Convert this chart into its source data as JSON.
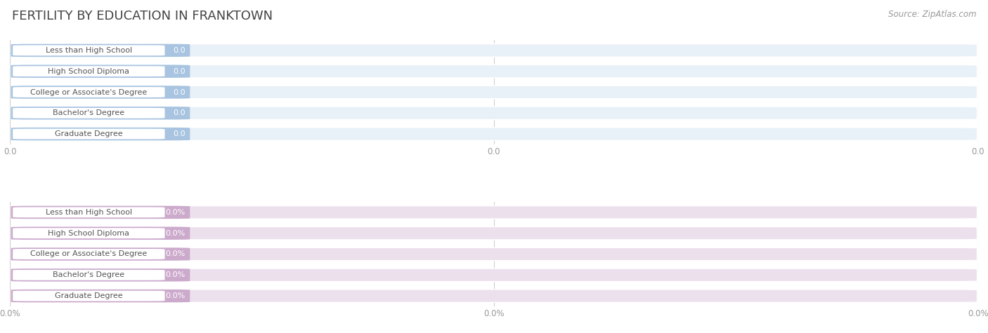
{
  "title": "FERTILITY BY EDUCATION IN FRANKTOWN",
  "source_text": "Source: ZipAtlas.com",
  "categories": [
    "Less than High School",
    "High School Diploma",
    "College or Associate's Degree",
    "Bachelor's Degree",
    "Graduate Degree"
  ],
  "top_values": [
    0.0,
    0.0,
    0.0,
    0.0,
    0.0
  ],
  "bottom_values": [
    0.0,
    0.0,
    0.0,
    0.0,
    0.0
  ],
  "top_bar_color": "#a8c4e0",
  "top_bar_bg": "#e8f0f8",
  "bottom_bar_color": "#ccaacc",
  "bottom_bar_bg": "#ede0ed",
  "top_value_format": "0.0",
  "bottom_value_format": "0.0%",
  "top_tick_labels": [
    "0.0",
    "0.0",
    "0.0"
  ],
  "bottom_tick_labels": [
    "0.0%",
    "0.0%",
    "0.0%"
  ],
  "bar_height": 0.62,
  "bg_color": "#ffffff",
  "grid_color": "#d0d0d0",
  "title_color": "#444444",
  "label_color": "#555555",
  "value_text_color": "#ffffff",
  "tick_label_color": "#999999",
  "source_color": "#999999"
}
